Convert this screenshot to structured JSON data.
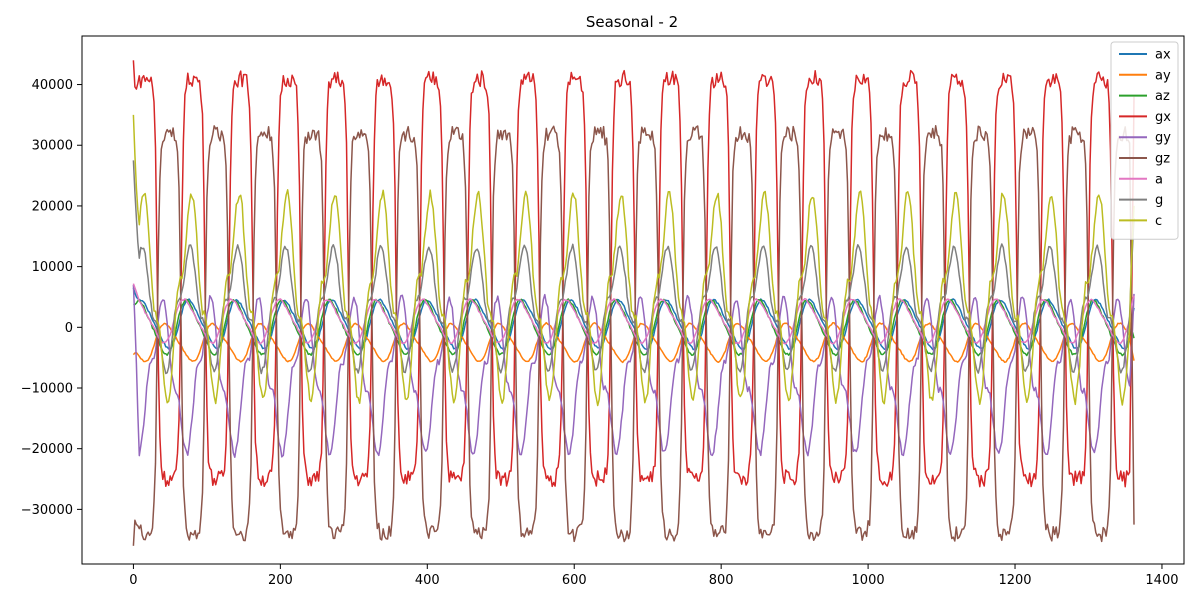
{
  "chart_data": {
    "type": "line",
    "title": "Seasonal - 2",
    "xlabel": "",
    "ylabel": "",
    "xlim": [
      -70,
      1430
    ],
    "ylim": [
      -39000,
      48000
    ],
    "x_ticks": [
      0,
      200,
      400,
      600,
      800,
      1000,
      1200,
      1400
    ],
    "x_tick_labels": [
      "0",
      "200",
      "400",
      "600",
      "800",
      "1000",
      "1200",
      "1400"
    ],
    "y_ticks": [
      -30000,
      -20000,
      -10000,
      0,
      10000,
      20000,
      30000,
      40000
    ],
    "y_tick_labels": [
      "−30000",
      "−20000",
      "−10000",
      "0",
      "10000",
      "20000",
      "30000",
      "40000"
    ],
    "x_range": [
      0,
      1362
    ],
    "period": 65,
    "grid": false,
    "legend_position": "top-right",
    "series": [
      {
        "name": "ax",
        "color": "#1f77b4",
        "mean": 500,
        "amplitude": 4500,
        "phase": 0.05,
        "shape": "smooth",
        "start": 6500,
        "end": 3200
      },
      {
        "name": "ay",
        "color": "#ff7f0e",
        "mean": -2500,
        "amplitude": 3500,
        "phase": 0.55,
        "shape": "smooth",
        "start": -4500,
        "end": -5500
      },
      {
        "name": "az",
        "color": "#2ca02c",
        "mean": 0,
        "amplitude": 5000,
        "phase": 0.1,
        "shape": "smooth",
        "start": 3700,
        "end": -1800
      },
      {
        "name": "gx",
        "color": "#d62728",
        "mean": 8000,
        "amplitude": 33000,
        "phase": 0.0,
        "shape": "square",
        "start": 44000,
        "end": 38000
      },
      {
        "name": "gy",
        "color": "#9467bd",
        "mean": -8000,
        "amplitude": 15000,
        "phase": 0.62,
        "shape": "spiky",
        "start": 7000,
        "end": 5500
      },
      {
        "name": "gz",
        "color": "#8c564b",
        "mean": -1000,
        "amplitude": 33000,
        "phase": 0.5,
        "shape": "square",
        "start": -36000,
        "end": -32500
      },
      {
        "name": "a",
        "color": "#e377c2",
        "mean": 1000,
        "amplitude": 4000,
        "phase": 0.15,
        "shape": "smooth",
        "start": 7200,
        "end": 5200
      },
      {
        "name": "g",
        "color": "#7f7f7f",
        "mean": 3000,
        "amplitude": 12000,
        "phase": 0.05,
        "shape": "spiky",
        "start": 27500,
        "end": 18000
      },
      {
        "name": "c",
        "color": "#bcbd22",
        "mean": 5000,
        "amplitude": 20000,
        "phase": 0.02,
        "shape": "spiky",
        "start": 35000,
        "end": 20000
      }
    ]
  }
}
